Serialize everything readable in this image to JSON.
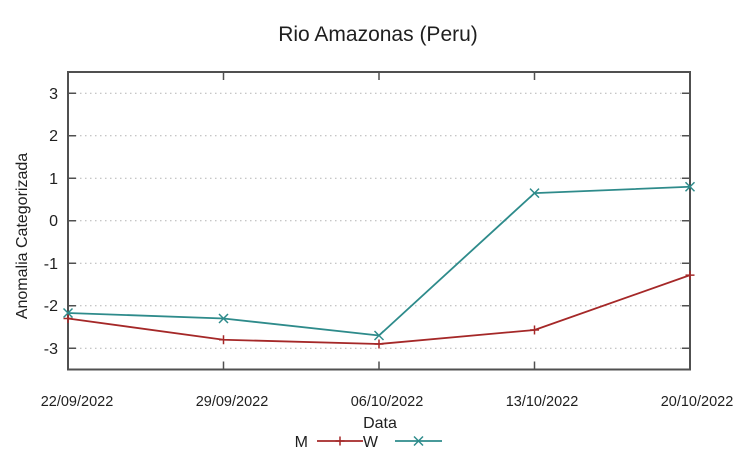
{
  "page": {
    "background": "#ffffff"
  },
  "chart_data": {
    "type": "line",
    "title": "Rio Amazonas (Peru)",
    "xlabel": "Data",
    "ylabel": "Anomalia Categorizada",
    "categories": [
      "22/09/2022",
      "29/09/2022",
      "06/10/2022",
      "13/10/2022",
      "20/10/2022"
    ],
    "series": [
      {
        "name": "M",
        "color": "#a52828",
        "marker": "plus",
        "values": [
          -2.3,
          -2.8,
          -2.9,
          -2.57,
          -1.28
        ]
      },
      {
        "name": "W",
        "color": "#2e8b8b",
        "marker": "x",
        "values": [
          -2.17,
          -2.3,
          -2.7,
          0.65,
          0.8
        ]
      }
    ],
    "ylim": [
      -3.5,
      3.5
    ],
    "yticks": [
      3,
      2,
      1,
      0,
      -1,
      -2,
      -3
    ],
    "ytick_labels": [
      "3",
      "2",
      "1",
      "0",
      "-1",
      "-2",
      "-3"
    ],
    "grid": "horizontal-dotted",
    "legend_position": "bottom-center",
    "axis_color": "#505050",
    "grid_color": "#b3b3b3",
    "text_color": "#1f1f1f"
  }
}
